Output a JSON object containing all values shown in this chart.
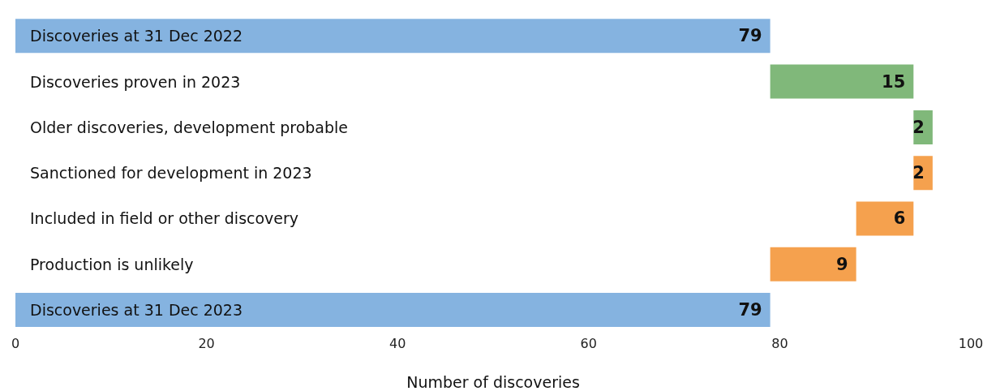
{
  "chart_data": {
    "type": "bar",
    "orientation": "horizontal",
    "xlabel": "Number of discoveries",
    "categories": [
      "Discoveries at 31 Dec 2022",
      "Discoveries proven in 2023",
      "Older discoveries, development probable",
      "Sanctioned for development in 2023",
      "Included in field or other discovery",
      "Production is unlikely",
      "Discoveries at 31 Dec 2023"
    ],
    "values": [
      79,
      15,
      2,
      2,
      6,
      9,
      79
    ],
    "base": [
      0,
      79,
      94,
      94,
      88,
      79,
      0
    ],
    "colors": [
      "#85b3e0",
      "#80b87a",
      "#80b87a",
      "#f5a14e",
      "#f5a14e",
      "#f5a14e",
      "#85b3e0"
    ],
    "xlim": [
      0,
      100
    ],
    "xticks": [
      0,
      20,
      40,
      60,
      80,
      100
    ],
    "grid": false,
    "legend": false,
    "data_labels": true
  }
}
